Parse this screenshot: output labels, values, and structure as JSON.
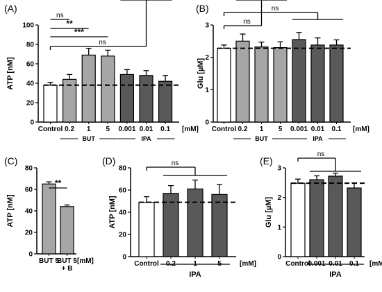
{
  "chart_data": [
    {
      "panel": "(A)",
      "type": "bar",
      "ylabel": "ATP [nM]",
      "ylim": [
        0,
        100
      ],
      "yticks": [
        0,
        20,
        40,
        60,
        80,
        100
      ],
      "categories": [
        "Control",
        "0.2",
        "1",
        "5",
        "0.001",
        "0.01",
        "0.1"
      ],
      "unit_label": "[mM]",
      "values": [
        38,
        44,
        69,
        68,
        49,
        48,
        42
      ],
      "errors": [
        3,
        5,
        7,
        6,
        5,
        5,
        6
      ],
      "bar_colors": [
        "#ffffff",
        "#a6a6a6",
        "#a6a6a6",
        "#a6a6a6",
        "#595959",
        "#595959",
        "#595959"
      ],
      "baseline": 38,
      "groups": [
        {
          "label": "BUT",
          "from": 1,
          "to": 3
        },
        {
          "label": "IPA",
          "from": 4,
          "to": 6
        }
      ],
      "annotations": [
        {
          "text": "ns",
          "from": 0,
          "to": 1
        },
        {
          "text": "**",
          "from": 0,
          "to": 2
        },
        {
          "text": "***",
          "from": 0,
          "to": 3
        },
        {
          "text": "ns",
          "from": 0,
          "to_range": [
            4,
            6
          ]
        }
      ]
    },
    {
      "panel": "(B)",
      "type": "bar",
      "ylabel": "Glu [µM]",
      "ylim": [
        0,
        3
      ],
      "yticks": [
        0,
        1,
        2,
        3
      ],
      "categories": [
        "Control",
        "0.2",
        "1",
        "5",
        "0.001",
        "0.01",
        "0.1"
      ],
      "unit_label": "[mM]",
      "values": [
        2.28,
        2.5,
        2.32,
        2.3,
        2.55,
        2.38,
        2.38
      ],
      "errors": [
        0.1,
        0.22,
        0.15,
        0.18,
        0.22,
        0.22,
        0.16
      ],
      "bar_colors": [
        "#ffffff",
        "#a6a6a6",
        "#a6a6a6",
        "#a6a6a6",
        "#595959",
        "#595959",
        "#595959"
      ],
      "baseline": 2.28,
      "groups": [
        {
          "label": "BUT",
          "from": 1,
          "to": 3
        },
        {
          "label": "IPA",
          "from": 4,
          "to": 6
        }
      ],
      "annotations": [
        {
          "text": "ns",
          "from": 0,
          "to_range": [
            1,
            3
          ]
        },
        {
          "text": "ns",
          "from": 0,
          "to_range": [
            4,
            6
          ]
        }
      ]
    },
    {
      "panel": "(C)",
      "type": "bar",
      "ylabel": "ATP [nM]",
      "ylim": [
        0,
        80
      ],
      "yticks": [
        0,
        20,
        40,
        60,
        80
      ],
      "categories": [
        "BUT  5",
        "BUT  5\n+ B"
      ],
      "unit_label": "[mM]",
      "values": [
        65,
        44
      ],
      "errors": [
        2,
        1.5
      ],
      "bar_colors": [
        "#a6a6a6",
        "#a6a6a6"
      ],
      "annotations": [
        {
          "text": "**",
          "from": 0,
          "to": 1
        }
      ]
    },
    {
      "panel": "(D)",
      "type": "bar",
      "ylabel": "ATP [nM]",
      "ylim": [
        0,
        80
      ],
      "yticks": [
        0,
        20,
        40,
        60,
        80
      ],
      "categories": [
        "Control",
        "0.2",
        "1",
        "5"
      ],
      "unit_label": "[mM]",
      "values": [
        49,
        57,
        61,
        56
      ],
      "errors": [
        5,
        7,
        8,
        9
      ],
      "bar_colors": [
        "#ffffff",
        "#595959",
        "#595959",
        "#595959"
      ],
      "baseline": 49,
      "groups": [
        {
          "label": "IPA",
          "from": 1,
          "to": 3
        }
      ],
      "annotations": [
        {
          "text": "ns",
          "from": 0,
          "to_range": [
            1,
            3
          ]
        }
      ]
    },
    {
      "panel": "(E)",
      "type": "bar",
      "ylabel": "Glu [µM]",
      "ylim": [
        0,
        3
      ],
      "yticks": [
        0,
        1,
        2,
        3
      ],
      "categories": [
        "Control",
        "0.001",
        "0.01",
        "0.1"
      ],
      "unit_label": "[mM]",
      "values": [
        2.48,
        2.6,
        2.72,
        2.32
      ],
      "errors": [
        0.14,
        0.13,
        0.1,
        0.17
      ],
      "bar_colors": [
        "#ffffff",
        "#595959",
        "#595959",
        "#595959"
      ],
      "baseline": 2.48,
      "groups": [
        {
          "label": "IPA",
          "from": 1,
          "to": 3
        }
      ],
      "annotations": [
        {
          "text": "ns",
          "from": 0,
          "to_range": [
            1,
            3
          ]
        }
      ]
    }
  ]
}
